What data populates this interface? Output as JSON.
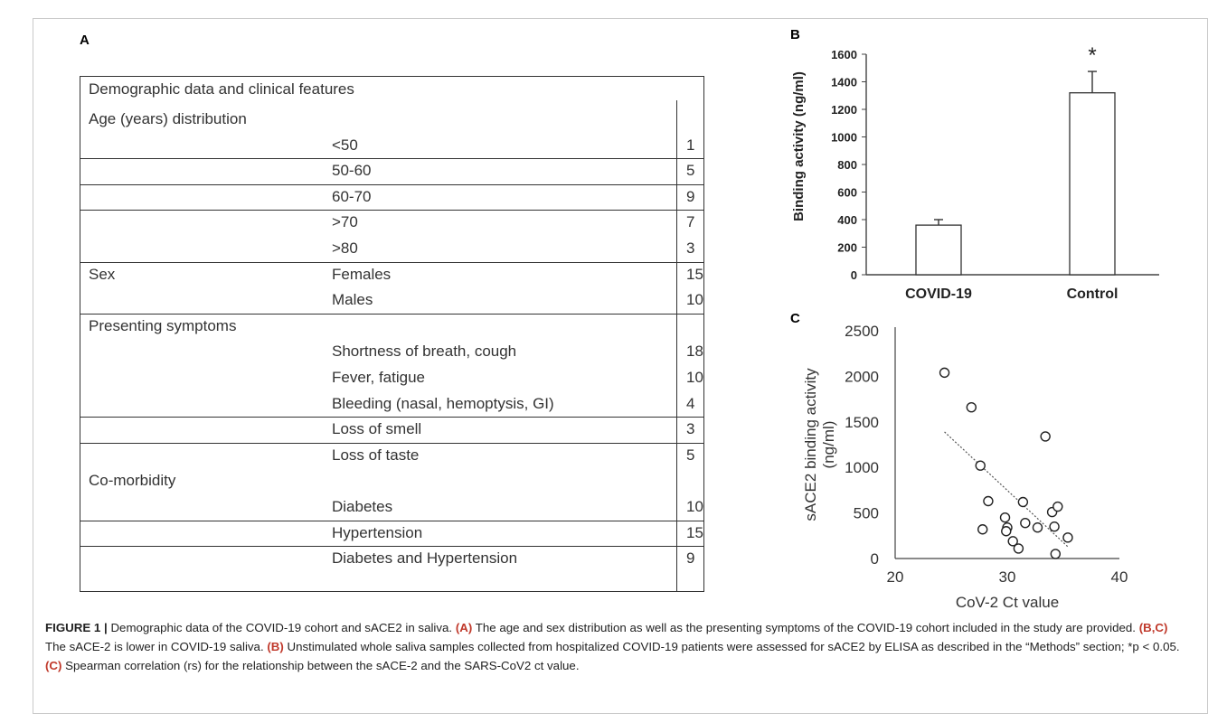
{
  "panel_labels": {
    "a": "A",
    "b": "B",
    "c": "C"
  },
  "table": {
    "header": "Demographic data and clinical features",
    "rows": [
      {
        "group": "Age (years) distribution",
        "item": "",
        "value": ""
      },
      {
        "group": "",
        "item": "<50",
        "value": "1"
      },
      {
        "group": "",
        "item": "50-60",
        "value": "5"
      },
      {
        "group": "",
        "item": "60-70",
        "value": "9"
      },
      {
        "group": "",
        "item": ">70",
        "value": "7"
      },
      {
        "group": "",
        "item": ">80",
        "value": "3"
      },
      {
        "group": "Sex",
        "item": "Females",
        "value": "15"
      },
      {
        "group": "",
        "item": "Males",
        "value": "10"
      },
      {
        "group": "Presenting symptoms",
        "item": "",
        "value": ""
      },
      {
        "group": "",
        "item": "Shortness of breath, cough",
        "value": "18"
      },
      {
        "group": "",
        "item": "Fever, fatigue",
        "value": "10"
      },
      {
        "group": "",
        "item": "Bleeding (nasal, hemoptysis, GI)",
        "value": "4"
      },
      {
        "group": "",
        "item": "Loss of smell",
        "value": "3"
      },
      {
        "group": "",
        "item": "Loss of taste",
        "value": "5"
      },
      {
        "group": "Co-morbidity",
        "item": "",
        "value": ""
      },
      {
        "group": "",
        "item": "Diabetes",
        "value": "10"
      },
      {
        "group": "",
        "item": "Hypertension",
        "value": "15"
      },
      {
        "group": "",
        "item": "Diabetes and Hypertension",
        "value": "9"
      }
    ]
  },
  "chart_data": [
    {
      "type": "bar",
      "categories": [
        "COVID-19",
        "Control"
      ],
      "values": [
        360,
        1320
      ],
      "errors": [
        40,
        155
      ],
      "ylabel": "Binding activity (ng/ml)",
      "ylim": [
        0,
        1600
      ],
      "yticks": [
        "0",
        "200",
        "400",
        "600",
        "800",
        "1000",
        "1200",
        "1400",
        "1600"
      ],
      "annotation": "*",
      "grid": false
    },
    {
      "type": "scatter",
      "x": [
        24.4,
        26.8,
        27.6,
        28.3,
        27.8,
        29.8,
        30.0,
        29.9,
        30.5,
        31.0,
        31.4,
        31.6,
        32.7,
        33.4,
        34.0,
        34.2,
        34.5,
        35.4,
        34.3
      ],
      "y": [
        2040,
        1660,
        1020,
        630,
        320,
        450,
        340,
        300,
        190,
        110,
        620,
        390,
        340,
        1340,
        510,
        350,
        570,
        230,
        50
      ],
      "trendline": {
        "x": [
          24.4,
          35.4
        ],
        "y": [
          1390,
          130
        ],
        "style": "dotted"
      },
      "xlabel": "CoV-2 Ct value",
      "ylabel": "sACE2 binding activity (ng/ml)",
      "xlim": [
        20,
        40
      ],
      "ylim": [
        0,
        2500
      ],
      "xticks": [
        "20",
        "30",
        "40"
      ],
      "yticks": [
        "0",
        "500",
        "1000",
        "1500",
        "2000",
        "2500"
      ],
      "grid": false
    }
  ],
  "caption": {
    "figure": "FIGURE 1 |",
    "title": " Demographic data of the COVID-19 cohort and sACE2 in saliva. ",
    "label_a": "(A)",
    "text_a": " The age and sex distribution as well as the presenting symptoms of the COVID-19 cohort included in the study are provided. ",
    "label_bc": "(B,C)",
    "text_bc": " The sACE-2 is lower in COVID-19 saliva. ",
    "label_b": "(B)",
    "text_b": " Unstimulated whole saliva samples collected from hospitalized COVID-19 patients were assessed for sACE2 by ELISA as described in the “Methods” section; *p < 0.05. ",
    "label_c": "(C)",
    "text_c": " Spearman correlation (rs) for the relationship between the sACE-2 and the SARS-CoV2 ct value."
  }
}
